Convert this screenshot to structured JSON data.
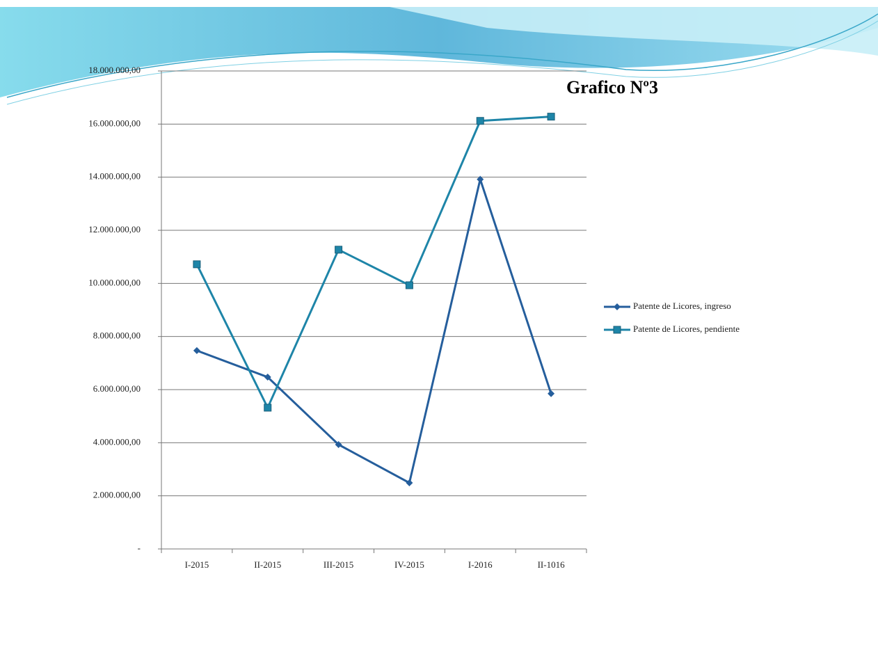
{
  "chart_data": {
    "type": "line",
    "title": "Grafico Nº3",
    "categories": [
      "I-2015",
      "II-2015",
      "III-2015",
      "IV-2015",
      "I-2016",
      "II-1016"
    ],
    "series": [
      {
        "name": "Patente de Licores, ingreso",
        "color": "#255e9c",
        "marker": "diamond",
        "values": [
          7470000,
          6470000,
          3930000,
          2490000,
          13920000,
          5850000
        ]
      },
      {
        "name": "Patente de Licores, pendiente",
        "color": "#1e85a8",
        "marker": "square",
        "values": [
          10720000,
          5320000,
          11270000,
          9930000,
          16120000,
          16280000
        ]
      }
    ],
    "ylim": [
      0,
      18000000
    ],
    "yticks": [
      {
        "value": 0,
        "label": "-"
      },
      {
        "value": 2000000,
        "label": "2.000.000,00"
      },
      {
        "value": 4000000,
        "label": "4.000.000,00"
      },
      {
        "value": 6000000,
        "label": "6.000.000,00"
      },
      {
        "value": 8000000,
        "label": "8.000.000,00"
      },
      {
        "value": 10000000,
        "label": "10.000.000,00"
      },
      {
        "value": 12000000,
        "label": "12.000.000,00"
      },
      {
        "value": 14000000,
        "label": "14.000.000,00"
      },
      {
        "value": 16000000,
        "label": "16.000.000,00"
      },
      {
        "value": 18000000,
        "label": "18.000.000,00"
      }
    ],
    "grid": true,
    "legend": "right"
  }
}
